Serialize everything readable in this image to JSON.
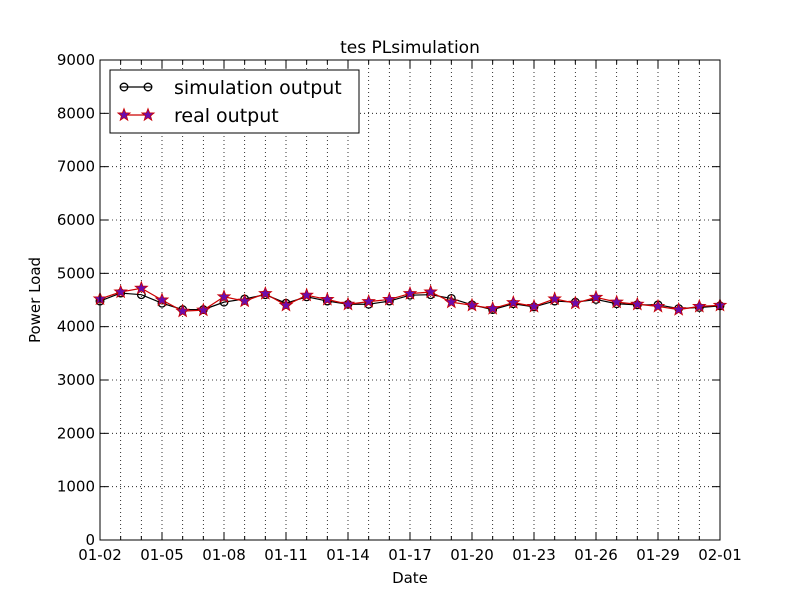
{
  "chart_data": {
    "type": "line",
    "title": "tes PLsimulation",
    "xlabel": "Date",
    "ylabel": "Power Load",
    "x_range": [
      "01-02",
      "02-01"
    ],
    "ylim": [
      0,
      9000
    ],
    "grid": true,
    "legend_position": "top-left",
    "x_ticks": [
      "01-02",
      "01-05",
      "01-08",
      "01-11",
      "01-14",
      "01-17",
      "01-20",
      "01-23",
      "01-26",
      "01-29",
      "02-01"
    ],
    "y_ticks": [
      0,
      1000,
      2000,
      3000,
      4000,
      5000,
      6000,
      7000,
      8000,
      9000
    ],
    "x": [
      "01-02",
      "01-03",
      "01-04",
      "01-05",
      "01-06",
      "01-07",
      "01-08",
      "01-09",
      "01-10",
      "01-11",
      "01-12",
      "01-13",
      "01-14",
      "01-15",
      "01-16",
      "01-17",
      "01-18",
      "01-19",
      "01-20",
      "01-21",
      "01-22",
      "01-23",
      "01-24",
      "01-25",
      "01-26",
      "01-27",
      "01-28",
      "01-29",
      "01-30",
      "01-31",
      "02-01"
    ],
    "series": [
      {
        "name": "simulation output",
        "color": "#000000",
        "marker": "circle",
        "values": [
          4480,
          4630,
          4600,
          4440,
          4320,
          4320,
          4460,
          4520,
          4600,
          4440,
          4560,
          4480,
          4420,
          4420,
          4480,
          4590,
          4600,
          4530,
          4410,
          4320,
          4430,
          4370,
          4480,
          4460,
          4510,
          4430,
          4410,
          4410,
          4340,
          4360,
          4390
        ]
      },
      {
        "name": "real output",
        "color": "#cc0000",
        "marker_color": "#6a0dad",
        "marker": "star",
        "values": [
          4520,
          4650,
          4720,
          4500,
          4290,
          4310,
          4560,
          4480,
          4620,
          4400,
          4590,
          4510,
          4420,
          4470,
          4510,
          4620,
          4650,
          4460,
          4400,
          4340,
          4450,
          4380,
          4520,
          4440,
          4550,
          4460,
          4420,
          4380,
          4320,
          4380,
          4400
        ]
      }
    ]
  }
}
